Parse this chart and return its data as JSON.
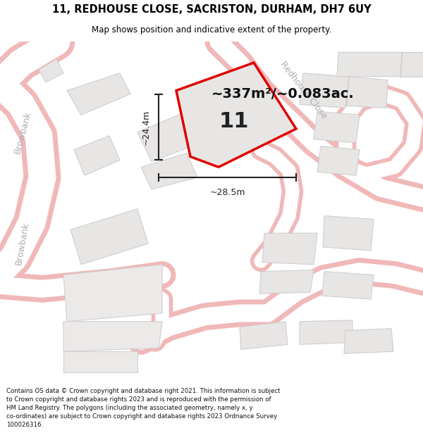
{
  "title_line1": "11, REDHOUSE CLOSE, SACRISTON, DURHAM, DH7 6UY",
  "title_line2": "Map shows position and indicative extent of the property.",
  "area_label": "~337m²/~0.083ac.",
  "plot_number": "11",
  "dim_vertical": "~24.4m",
  "dim_horizontal": "~28.5m",
  "street_label_redhouse": "Redhouse Close",
  "street_label_browbank": "Browbank",
  "footer_text": "Contains OS data © Crown copyright and database right 2021. This information is subject to Crown copyright and database rights 2023 and is reproduced with the permission of HM Land Registry. The polygons (including the associated geometry, namely x, y co-ordinates) are subject to Crown copyright and database rights 2023 Ordnance Survey 100026316.",
  "bg_color": "#ffffff",
  "map_bg": "#f7f5f5",
  "road_outline_color": "#f0b8b8",
  "road_fill_color": "#ffffff",
  "building_fill": "#e8e6e4",
  "building_edge": "#d0cece",
  "plot_fill": "#e8e6e4",
  "plot_edge": "#e00000",
  "dim_color": "#222222",
  "street_color": "#b0aeae",
  "title_color": "#000000",
  "footer_color": "#111111"
}
